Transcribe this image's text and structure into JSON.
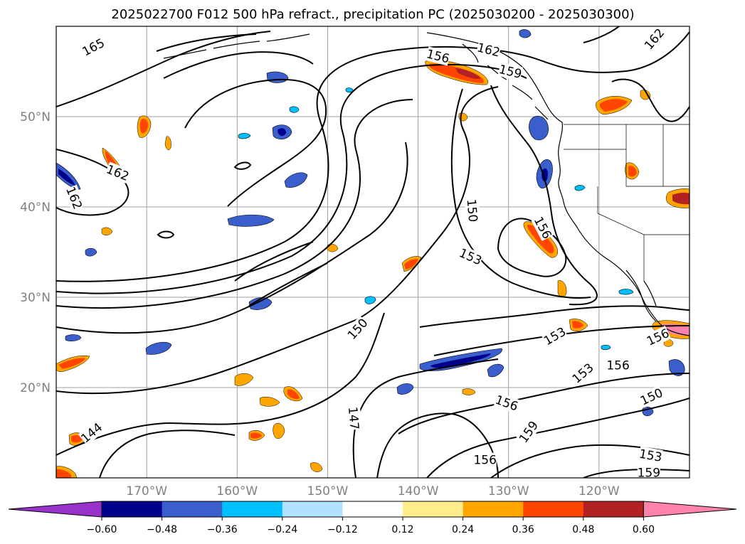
{
  "chart_data": {
    "type": "heatmap",
    "title": "2025022700 F012 500 hPa refract., precipitation PC (2025030200 - 2025030300)",
    "map": {
      "lon_range": [
        -180,
        -110
      ],
      "lat_range": [
        10,
        60
      ],
      "grid": true,
      "lon_ticks": [
        {
          "value": -170,
          "label": "170°W"
        },
        {
          "value": -160,
          "label": "160°W"
        },
        {
          "value": -150,
          "label": "150°W"
        },
        {
          "value": -140,
          "label": "140°W"
        },
        {
          "value": -130,
          "label": "130°W"
        },
        {
          "value": -120,
          "label": "120°W"
        }
      ],
      "lat_ticks": [
        {
          "value": 20,
          "label": "20°N"
        },
        {
          "value": 30,
          "label": "30°N"
        },
        {
          "value": 40,
          "label": "40°N"
        },
        {
          "value": 50,
          "label": "50°N"
        }
      ]
    },
    "colorbar": {
      "orientation": "horizontal",
      "extend": "both",
      "ticks": [
        "−0.60",
        "−0.48",
        "−0.36",
        "−0.24",
        "−0.12",
        "0.12",
        "0.24",
        "0.36",
        "0.48",
        "0.60"
      ],
      "colors": [
        "#9932cc",
        "#00008b",
        "#3a5fcd",
        "#00bfff",
        "#b0e2ff",
        "#ffffff",
        "#ffec8b",
        "#ffa500",
        "#ff4500",
        "#b22222",
        "#ff82ab"
      ]
    },
    "contour_labels": [
      {
        "text": "165",
        "lon": -175.9,
        "lat": 57.7,
        "rot": -28
      },
      {
        "text": "162",
        "lon": -173.2,
        "lat": 43.8,
        "rot": 22
      },
      {
        "text": "162",
        "lon": -178.0,
        "lat": 41.0,
        "rot": 68
      },
      {
        "text": "156",
        "lon": -137.8,
        "lat": 56.7,
        "rot": 14
      },
      {
        "text": "162",
        "lon": -132.2,
        "lat": 57.4,
        "rot": 14
      },
      {
        "text": "159",
        "lon": -129.8,
        "lat": 55.0,
        "rot": 14
      },
      {
        "text": "162",
        "lon": -113.9,
        "lat": 58.6,
        "rot": -50
      },
      {
        "text": "150",
        "lon": -134.0,
        "lat": 39.6,
        "rot": 85
      },
      {
        "text": "156",
        "lon": -126.2,
        "lat": 37.7,
        "rot": 62
      },
      {
        "text": "153",
        "lon": -134.2,
        "lat": 34.5,
        "rot": 24
      },
      {
        "text": "150",
        "lon": -146.7,
        "lat": 26.5,
        "rot": -48
      },
      {
        "text": "153",
        "lon": -124.9,
        "lat": 25.7,
        "rot": -30
      },
      {
        "text": "156",
        "lon": -113.5,
        "lat": 25.6,
        "rot": -25
      },
      {
        "text": "153",
        "lon": -121.8,
        "lat": 21.6,
        "rot": -40
      },
      {
        "text": "156",
        "lon": -117.9,
        "lat": 22.5,
        "rot": 0
      },
      {
        "text": "156",
        "lon": -130.2,
        "lat": 18.3,
        "rot": 20
      },
      {
        "text": "150",
        "lon": -114.2,
        "lat": 19.0,
        "rot": -25
      },
      {
        "text": "147",
        "lon": -147.1,
        "lat": 16.6,
        "rot": 85
      },
      {
        "text": "159",
        "lon": -127.8,
        "lat": 15.1,
        "rot": -55
      },
      {
        "text": "144",
        "lon": -176.1,
        "lat": 15.0,
        "rot": -40
      },
      {
        "text": "153",
        "lon": -114.3,
        "lat": 12.5,
        "rot": 10
      },
      {
        "text": "156",
        "lon": -132.6,
        "lat": 12.0,
        "rot": 0
      },
      {
        "text": "159",
        "lon": -114.5,
        "lat": 10.6,
        "rot": 0
      }
    ]
  }
}
